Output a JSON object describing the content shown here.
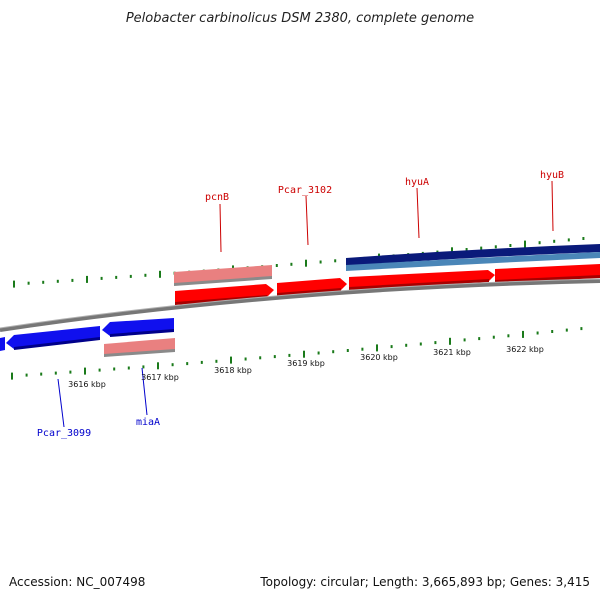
{
  "title": "Pelobacter carbinolicus DSM 2380, complete genome",
  "colors": {
    "forward_gene": "#ff0000",
    "forward_rna_light": "#e98080",
    "reverse_gene": "#1010ee",
    "dark_blue_band": "#0a1a7a",
    "steel_blue_band": "#4a86b8",
    "backbone": "#808080",
    "tick": "#1a7a1a",
    "label_forward": "#cc0000",
    "label_reverse": "#0000cc"
  },
  "genes_top": [
    {
      "label": "pcnB",
      "strand": "+",
      "icon": "arrow-right"
    },
    {
      "label": "Pcar_3102",
      "strand": "+",
      "icon": "arrow-right"
    },
    {
      "label": "hyuA",
      "strand": "+",
      "icon": "arrow-right"
    },
    {
      "label": "hyuB",
      "strand": "+",
      "icon": "arrow-right"
    }
  ],
  "genes_bottom": [
    {
      "label": "Pcar_3099",
      "strand": "-",
      "icon": "arrow-left"
    },
    {
      "label": "miaA",
      "strand": "-",
      "icon": "arrow-left"
    }
  ],
  "scale": {
    "unit": "kbp",
    "labels": [
      "3616 kbp",
      "3617 kbp",
      "3618 kbp",
      "3619 kbp",
      "3620 kbp",
      "3621 kbp",
      "3622 kbp"
    ]
  },
  "footer": {
    "accession": "Accession: NC_007498",
    "summary": "Topology: circular; Length: 3,665,893 bp; Genes: 3,415"
  }
}
